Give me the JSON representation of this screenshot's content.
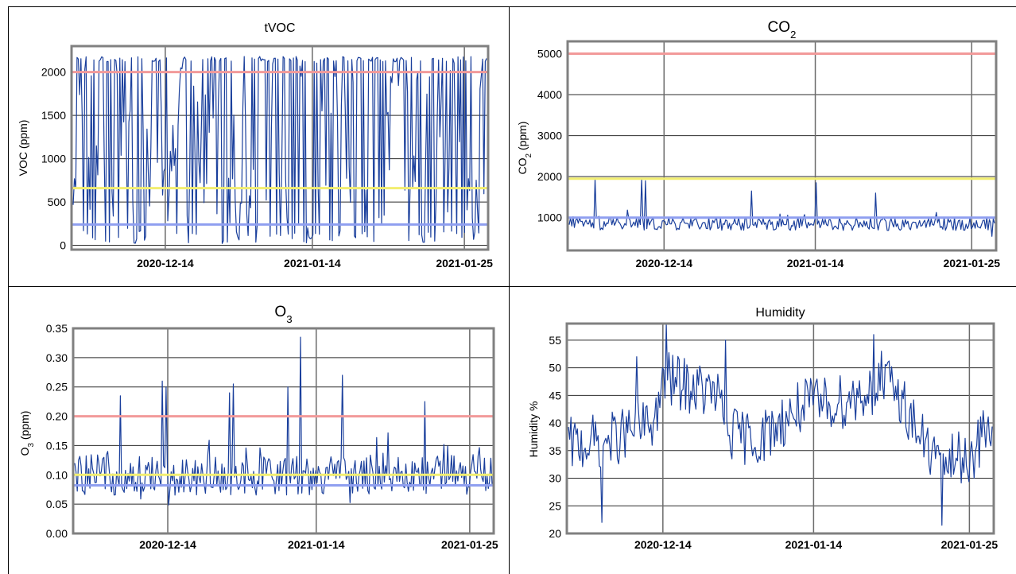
{
  "colors": {
    "series": "#1a3f9c",
    "upper_threshold": "#f29a9a",
    "mid_threshold": "#f2ee70",
    "low_threshold": "#8f9ff0",
    "frame": "#808080",
    "grid": "#2b2b2b"
  },
  "chart_data": [
    {
      "id": "tvoc",
      "type": "line",
      "title": "tVOC",
      "title_parts": [
        {
          "t": "tVOC",
          "sub": false
        }
      ],
      "ylabel": "VOC (ppm)",
      "ylabel_parts": [
        {
          "t": "VOC (ppm)",
          "sub": false
        }
      ],
      "xlabel": "",
      "x_ticks": [
        "2020-12-14",
        "2021-01-14",
        "2021-01-25"
      ],
      "ylim": [
        -50,
        2300
      ],
      "y_ticks": [
        0,
        500,
        1000,
        1500,
        2000
      ],
      "y_tick_labels": [
        "0",
        "500",
        "1000",
        "1500",
        "2000"
      ],
      "grid": true,
      "thresholds": [
        {
          "value": 2000,
          "color": "#f29a9a"
        },
        {
          "value": 660,
          "color": "#f2ee70"
        },
        {
          "value": 240,
          "color": "#8f9ff0"
        }
      ],
      "series": [
        {
          "y_base": 300,
          "y_min": 20,
          "y_max": 2180,
          "style": "spiky",
          "n": 320,
          "values": [
            200,
            2180,
            80,
            1500,
            300,
            2180,
            60,
            1100,
            2180,
            150,
            900,
            2180,
            50,
            1800,
            300,
            2180,
            100,
            1000,
            2180,
            60,
            1300,
            200,
            2180,
            80,
            700,
            2180,
            300,
            1500,
            2180,
            100,
            600,
            2180,
            200,
            1900,
            60,
            2180,
            400,
            1200,
            2180,
            100,
            800,
            2180,
            300,
            1600,
            80,
            2180,
            500,
            1100,
            2180,
            200
          ]
        }
      ]
    },
    {
      "id": "co2",
      "type": "line",
      "title": "CO₂",
      "title_parts": [
        {
          "t": "CO",
          "sub": false
        },
        {
          "t": "2",
          "sub": true
        }
      ],
      "ylabel": "CO₂ (ppm)",
      "ylabel_parts": [
        {
          "t": "CO",
          "sub": false
        },
        {
          "t": "2",
          "sub": true
        },
        {
          "t": " (ppm)",
          "sub": false
        }
      ],
      "xlabel": "",
      "x_ticks": [
        "2020-12-14",
        "2021-01-14",
        "2021-01-25"
      ],
      "ylim": [
        200,
        5300
      ],
      "y_ticks": [
        1000,
        2000,
        3000,
        4000,
        5000
      ],
      "y_tick_labels": [
        "1000",
        "2000",
        "3000",
        "4000",
        "5000"
      ],
      "grid": true,
      "thresholds": [
        {
          "value": 5000,
          "color": "#f29a9a"
        },
        {
          "value": 1950,
          "color": "#f2ee70"
        },
        {
          "value": 1000,
          "color": "#8f9ff0"
        }
      ],
      "series": [
        {
          "y_base": 850,
          "y_min": 480,
          "y_max": 1950,
          "style": "noisy",
          "n": 330,
          "peaks": [
            [
              0.06,
              1950
            ],
            [
              0.17,
              1950
            ],
            [
              0.18,
              1900
            ],
            [
              0.58,
              1850
            ],
            [
              0.43,
              1650
            ],
            [
              0.72,
              1600
            ]
          ]
        }
      ]
    },
    {
      "id": "o3",
      "type": "line",
      "title": "O₃",
      "title_parts": [
        {
          "t": "O",
          "sub": false
        },
        {
          "t": "3",
          "sub": true
        }
      ],
      "ylabel": "O₃ (ppm)",
      "ylabel_parts": [
        {
          "t": "O",
          "sub": false
        },
        {
          "t": "3",
          "sub": true
        },
        {
          "t": " (ppm)",
          "sub": false
        }
      ],
      "xlabel": "",
      "x_ticks": [
        "2020-12-14",
        "2021-01-14",
        "2021-01-25"
      ],
      "ylim": [
        0,
        0.35
      ],
      "y_ticks": [
        0.0,
        0.05,
        0.1,
        0.15,
        0.2,
        0.25,
        0.3,
        0.35
      ],
      "y_tick_labels": [
        "0.00",
        "0.05",
        "0.10",
        "0.15",
        "0.20",
        "0.25",
        "0.30",
        "0.35"
      ],
      "grid": true,
      "thresholds": [
        {
          "value": 0.2,
          "color": "#f29a9a"
        },
        {
          "value": 0.1,
          "color": "#f2ee70"
        },
        {
          "value": 0.082,
          "color": "#8f9ff0"
        }
      ],
      "series": [
        {
          "y_base": 0.1,
          "y_min": 0.02,
          "y_max": 0.335,
          "style": "noisy",
          "n": 330,
          "peaks": [
            [
              0.21,
              0.26
            ],
            [
              0.22,
              0.25
            ],
            [
              0.11,
              0.235
            ],
            [
              0.38,
              0.255
            ],
            [
              0.54,
              0.335
            ],
            [
              0.51,
              0.25
            ],
            [
              0.64,
              0.27
            ],
            [
              0.84,
              0.225
            ],
            [
              0.37,
              0.24
            ]
          ]
        }
      ]
    },
    {
      "id": "humidity",
      "type": "line",
      "title": "Humidity",
      "title_parts": [
        {
          "t": "Humidity",
          "sub": false
        }
      ],
      "ylabel": "Humidity %",
      "ylabel_parts": [
        {
          "t": "Humidity %",
          "sub": false
        }
      ],
      "xlabel": "",
      "x_ticks": [
        "2020-12-14",
        "2021-01-14",
        "2021-01-25"
      ],
      "ylim": [
        20,
        58
      ],
      "y_ticks": [
        20,
        25,
        30,
        35,
        40,
        45,
        50,
        55
      ],
      "y_tick_labels": [
        "20",
        "25",
        "30",
        "35",
        "40",
        "45",
        "50",
        "55"
      ],
      "grid": true,
      "thresholds": [],
      "series": [
        {
          "style": "trend",
          "n": 330,
          "y_min": 21.5,
          "y_max": 58,
          "trend": [
            [
              0,
              36
            ],
            [
              0.1,
              37
            ],
            [
              0.2,
              40
            ],
            [
              0.23,
              48
            ],
            [
              0.35,
              45
            ],
            [
              0.38,
              38
            ],
            [
              0.45,
              37
            ],
            [
              0.55,
              43
            ],
            [
              0.65,
              44
            ],
            [
              0.75,
              47
            ],
            [
              0.78,
              45
            ],
            [
              0.85,
              35
            ],
            [
              0.9,
              33
            ],
            [
              0.95,
              34
            ],
            [
              1.0,
              40
            ]
          ],
          "peaks": [
            [
              0.23,
              58
            ],
            [
              0.72,
              56
            ],
            [
              0.37,
              55
            ],
            [
              0.16,
              52
            ],
            [
              0.74,
              53
            ],
            [
              0.08,
              22
            ],
            [
              0.88,
              21.5
            ]
          ]
        }
      ]
    }
  ]
}
